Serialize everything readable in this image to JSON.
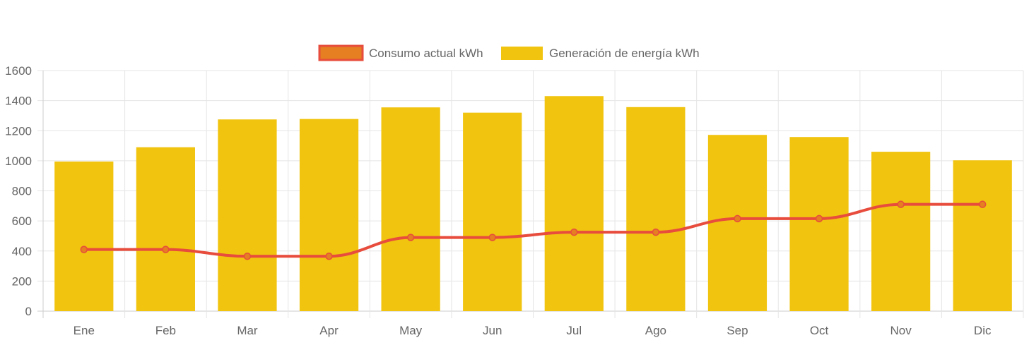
{
  "chart_data": {
    "type": "bar",
    "categories": [
      "Ene",
      "Feb",
      "Mar",
      "Apr",
      "May",
      "Jun",
      "Jul",
      "Ago",
      "Sep",
      "Oct",
      "Nov",
      "Dic"
    ],
    "series": [
      {
        "name": "Consumo actual kWh",
        "type": "line",
        "color": "#e74c3c",
        "fill_color": "#e67e22",
        "values": [
          410,
          410,
          365,
          365,
          490,
          490,
          525,
          525,
          615,
          615,
          710,
          710
        ]
      },
      {
        "name": "Generación de energía kWh",
        "type": "bar",
        "color": "#f1c40f",
        "values": [
          995,
          1090,
          1275,
          1278,
          1355,
          1320,
          1430,
          1357,
          1172,
          1158,
          1060,
          1003
        ]
      }
    ],
    "ylim": [
      0,
      1600
    ],
    "yticks": [
      "0",
      "200",
      "400",
      "600",
      "800",
      "1000",
      "1200",
      "1400",
      "1600"
    ],
    "grid": true,
    "legend_position": "top-center"
  }
}
